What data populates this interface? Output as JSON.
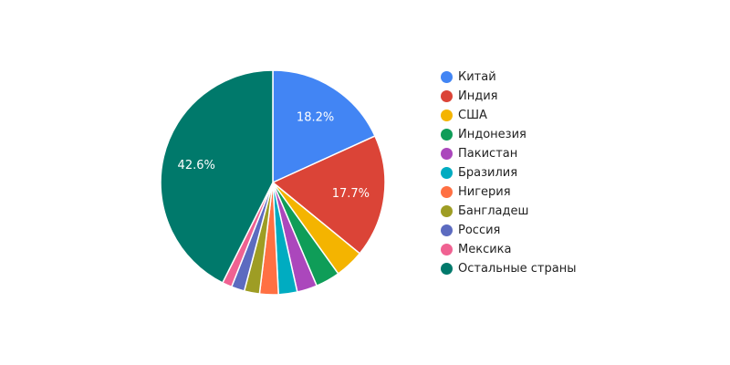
{
  "chart_data": {
    "type": "pie",
    "title": "",
    "categories": [
      "Китай",
      "Индия",
      "США",
      "Индонезия",
      "Пакистан",
      "Бразилия",
      "Нигерия",
      "Бангладеш",
      "Россия",
      "Мексика",
      "Остальные страны"
    ],
    "values": [
      18.2,
      17.7,
      4.2,
      3.5,
      2.9,
      2.7,
      2.7,
      2.2,
      1.9,
      1.4,
      42.6
    ],
    "colors": [
      "#4285f4",
      "#db4437",
      "#f4b400",
      "#0f9d58",
      "#ab47bc",
      "#00acc1",
      "#ff7043",
      "#9e9d24",
      "#5c6bc0",
      "#f06292",
      "#00796b"
    ],
    "labels_shown": [
      "18.2%",
      "17.7%",
      "",
      "",
      "",
      "",
      "",
      "",
      "",
      "",
      "42.6%"
    ],
    "legend_position": "right",
    "start_angle_deg": 0,
    "direction": "clockwise"
  },
  "legend": {
    "items": [
      {
        "label": "Китай",
        "color": "#4285f4"
      },
      {
        "label": "Индия",
        "color": "#db4437"
      },
      {
        "label": "США",
        "color": "#f4b400"
      },
      {
        "label": "Индонезия",
        "color": "#0f9d58"
      },
      {
        "label": "Пакистан",
        "color": "#ab47bc"
      },
      {
        "label": "Бразилия",
        "color": "#00acc1"
      },
      {
        "label": "Нигерия",
        "color": "#ff7043"
      },
      {
        "label": "Бангладеш",
        "color": "#9e9d24"
      },
      {
        "label": "Россия",
        "color": "#5c6bc0"
      },
      {
        "label": "Мексика",
        "color": "#f06292"
      },
      {
        "label": "Остальные страны",
        "color": "#00796b"
      }
    ]
  }
}
